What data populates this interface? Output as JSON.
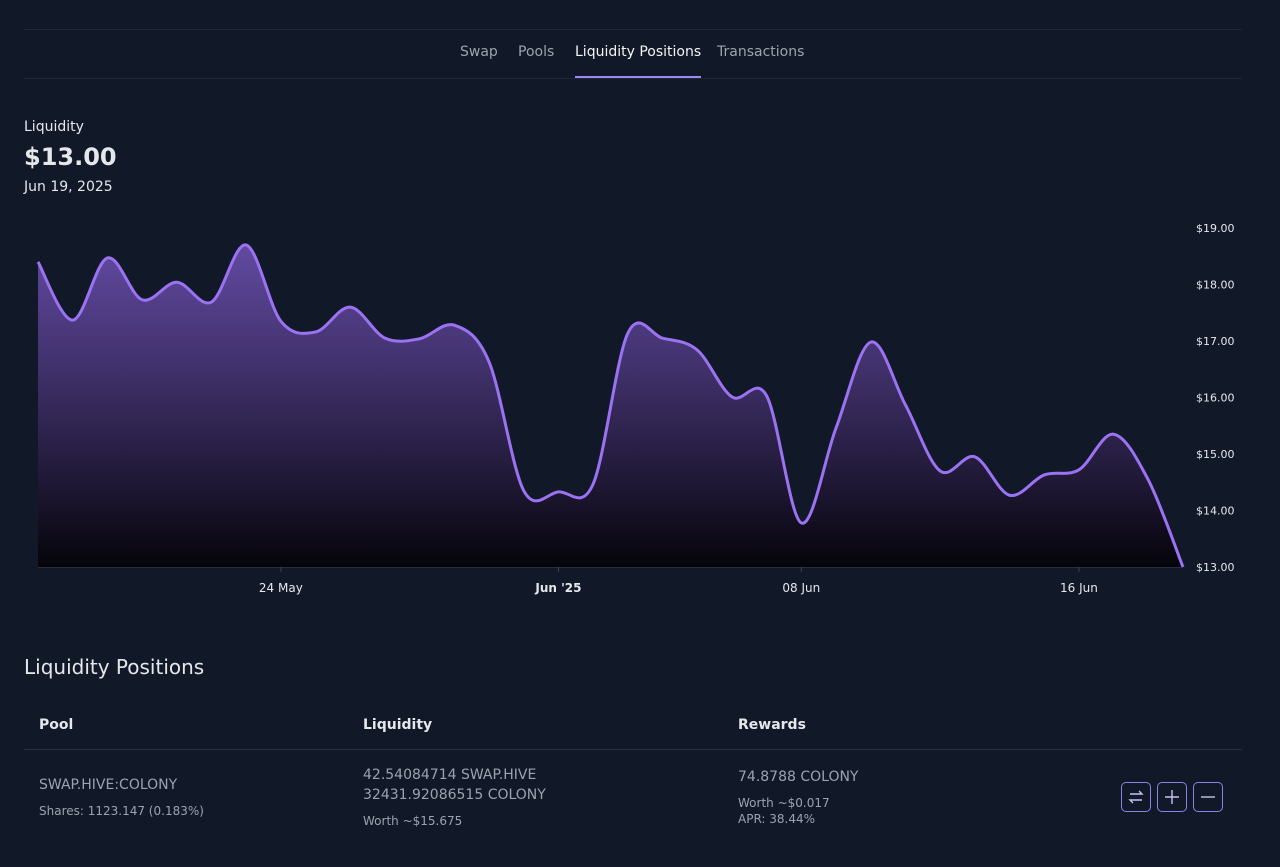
{
  "nav": {
    "tabs": [
      "Swap",
      "Pools",
      "Liquidity Positions",
      "Transactions"
    ],
    "active": 2
  },
  "header": {
    "label": "Liquidity",
    "value": "$13.00",
    "date": "Jun 19, 2025"
  },
  "chart_data": {
    "type": "area",
    "categories": [
      null,
      null,
      null,
      null,
      null,
      null,
      null,
      "24 May",
      null,
      null,
      null,
      null,
      null,
      null,
      null,
      "Jun '25",
      null,
      null,
      null,
      null,
      null,
      null,
      "08 Jun",
      null,
      null,
      null,
      null,
      null,
      null,
      null,
      "16 Jun",
      null,
      null,
      null
    ],
    "series": [
      {
        "name": "Liquidity",
        "color": "#9b72f2",
        "values": [
          18.4,
          17.37,
          18.47,
          17.73,
          18.04,
          17.69,
          18.7,
          17.35,
          17.16,
          17.6,
          17.05,
          17.04,
          17.28,
          16.63,
          14.35,
          14.33,
          14.47,
          17.14,
          17.05,
          16.84,
          16.01,
          16.03,
          13.78,
          15.46,
          16.98,
          15.87,
          14.7,
          14.95,
          14.27,
          14.63,
          14.72,
          15.35,
          14.54,
          13.0
        ]
      }
    ],
    "ylim": [
      13,
      19
    ],
    "yticks": [
      {
        "value": 13,
        "label": "$13.00"
      },
      {
        "value": 14,
        "label": "$14.00"
      },
      {
        "value": 15,
        "label": "$15.00"
      },
      {
        "value": 16,
        "label": "$16.00"
      },
      {
        "value": 17,
        "label": "$17.00"
      },
      {
        "value": 18,
        "label": "$18.00"
      },
      {
        "value": 19,
        "label": "$19.00"
      }
    ],
    "bold_category": 15
  },
  "table": {
    "title": "Liquidity Positions",
    "columns": [
      "Pool",
      "Liquidity",
      "Rewards"
    ],
    "rows": [
      {
        "pool": "SWAP.HIVE:COLONY",
        "shares": "Shares: 1123.147 (0.183%)",
        "liquidity": [
          "42.54084714 SWAP.HIVE",
          "32431.92086515 COLONY"
        ],
        "worth": "Worth ~$15.675",
        "rewards": "74.8788 COLONY",
        "rewards_worth": "Worth ~$0.017",
        "apr": "APR: 38.44%"
      }
    ]
  }
}
